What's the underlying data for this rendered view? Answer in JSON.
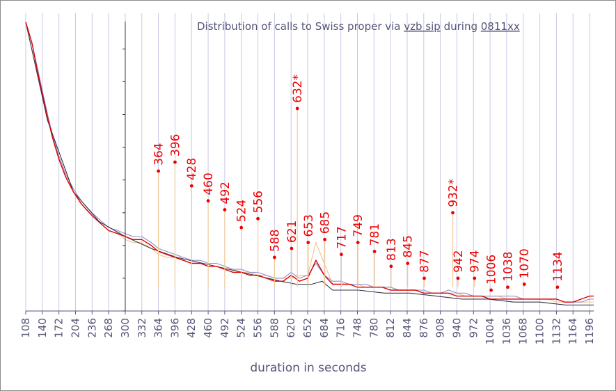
{
  "chart_data": {
    "type": "line",
    "title_parts": [
      "Distribution of calls to Swiss proper via ",
      "vzb sip",
      " during ",
      "0811xx"
    ],
    "xlabel": "duration in seconds",
    "ylabel": "",
    "xlim": [
      108,
      1204
    ],
    "ylim": [
      0,
      100
    ],
    "y_axis_crossing_x": 300,
    "grid": {
      "vertical": true,
      "horizontal": false
    },
    "x_tick_labels": [
      "108",
      "140",
      "172",
      "204",
      "236",
      "268",
      "300",
      "332",
      "364",
      "396",
      "428",
      "460",
      "492",
      "524",
      "556",
      "588",
      "620",
      "652",
      "684",
      "716",
      "748",
      "780",
      "812",
      "844",
      "876",
      "908",
      "940",
      "972",
      "1004",
      "1036",
      "1068",
      "1100",
      "1132",
      "1164",
      "1196"
    ],
    "colors": {
      "raw": "#f5c896",
      "smoothed": "#dd0000",
      "average": "#9090cc",
      "baseline": "#333344",
      "peak_label": "#ee0000",
      "grid": "#c8c8e8",
      "axis": "#555577"
    },
    "series": [
      {
        "role": "raw",
        "x": [
          108,
          120,
          130,
          140,
          150,
          160,
          172,
          185,
          200,
          215,
          236,
          255,
          268,
          285,
          300,
          315,
          332,
          350,
          364,
          380,
          396,
          412,
          428,
          445,
          460,
          476,
          492,
          508,
          524,
          540,
          556,
          572,
          588,
          605,
          620,
          636,
          652,
          668,
          684,
          700,
          716,
          732,
          748,
          764,
          780,
          796,
          812,
          828,
          844,
          860,
          876,
          892,
          908,
          924,
          940,
          956,
          972,
          988,
          1004,
          1020,
          1036,
          1052,
          1068,
          1084,
          1100,
          1116,
          1132,
          1148,
          1164,
          1180,
          1196,
          1204
        ],
        "y": [
          97,
          90,
          82,
          74,
          66,
          59,
          52,
          46,
          40,
          36,
          32,
          29,
          27,
          26,
          24,
          23,
          23,
          21,
          19,
          18,
          18,
          17,
          16,
          16,
          15,
          15,
          14,
          14,
          13,
          13,
          12,
          12,
          11,
          11,
          11,
          12,
          12,
          23,
          16,
          9,
          9,
          9,
          9,
          8,
          8,
          8,
          8,
          7,
          7,
          7,
          6,
          6,
          6,
          6,
          6,
          5,
          5,
          5,
          5,
          5,
          4,
          4,
          4,
          4,
          4,
          4,
          3,
          3,
          3,
          3,
          3,
          3
        ]
      },
      {
        "role": "smoothed",
        "x": [
          108,
          120,
          130,
          140,
          150,
          160,
          172,
          185,
          200,
          215,
          236,
          255,
          268,
          285,
          300,
          315,
          332,
          350,
          364,
          380,
          396,
          412,
          428,
          445,
          460,
          476,
          492,
          508,
          524,
          540,
          556,
          572,
          588,
          605,
          620,
          636,
          652,
          668,
          684,
          700,
          716,
          732,
          748,
          764,
          780,
          796,
          812,
          828,
          844,
          860,
          876,
          892,
          908,
          924,
          940,
          956,
          972,
          988,
          1004,
          1020,
          1036,
          1052,
          1068,
          1084,
          1100,
          1116,
          1132,
          1148,
          1164,
          1180,
          1196,
          1204
        ],
        "y": [
          97,
          90,
          81,
          73,
          65,
          58,
          51,
          45,
          40,
          36,
          32,
          29,
          27,
          26,
          25,
          24,
          24,
          22,
          20,
          19,
          18,
          17,
          16,
          16,
          15,
          15,
          14,
          13,
          13,
          12,
          12,
          11,
          10,
          10,
          12,
          10,
          11,
          17,
          12,
          9,
          9,
          9,
          8,
          8,
          8,
          8,
          7,
          7,
          7,
          7,
          6,
          6,
          6,
          6,
          5,
          5,
          5,
          5,
          4,
          4,
          4,
          4,
          4,
          4,
          4,
          4,
          4,
          3,
          3,
          4,
          5,
          5
        ]
      },
      {
        "role": "average",
        "x": [
          108,
          120,
          130,
          140,
          150,
          160,
          172,
          185,
          200,
          215,
          236,
          255,
          268,
          285,
          300,
          315,
          332,
          350,
          364,
          380,
          396,
          412,
          428,
          445,
          460,
          476,
          492,
          508,
          524,
          540,
          556,
          572,
          588,
          605,
          620,
          636,
          652,
          668,
          684,
          700,
          716,
          732,
          748,
          764,
          780,
          796,
          812,
          828,
          844,
          860,
          876,
          892,
          908,
          924,
          940,
          956,
          972,
          988,
          1004,
          1020,
          1036,
          1052,
          1068,
          1084,
          1100,
          1116,
          1132,
          1148,
          1164,
          1180,
          1196,
          1204
        ],
        "y": [
          97,
          90,
          82,
          74,
          66,
          59,
          52,
          46,
          41,
          37,
          33,
          30,
          28,
          27,
          26,
          25,
          25,
          23,
          21,
          20,
          19,
          18,
          17,
          17,
          16,
          16,
          15,
          14,
          14,
          13,
          13,
          12,
          11,
          11,
          13,
          11,
          12,
          16,
          12,
          10,
          10,
          9,
          9,
          9,
          8,
          8,
          8,
          7,
          7,
          7,
          7,
          6,
          6,
          7,
          6,
          6,
          5,
          5,
          5,
          5,
          5,
          5,
          4,
          4,
          4,
          4,
          4,
          3,
          3,
          3,
          4,
          4
        ]
      },
      {
        "role": "baseline",
        "x": [
          108,
          150,
          200,
          250,
          300,
          350,
          400,
          450,
          500,
          550,
          600,
          630,
          660,
          680,
          700,
          750,
          800,
          850,
          900,
          950,
          1000,
          1050,
          1100,
          1150,
          1204
        ],
        "y": [
          97,
          64,
          40,
          30,
          25,
          21,
          18,
          16,
          14,
          12,
          10,
          9,
          9,
          10,
          7,
          7,
          6,
          6,
          5,
          4,
          4,
          3,
          3,
          2,
          2
        ]
      }
    ],
    "peak_labels": [
      {
        "label": "364",
        "x": 364,
        "y": 47
      },
      {
        "label": "396",
        "x": 396,
        "y": 50
      },
      {
        "label": "428",
        "x": 428,
        "y": 42
      },
      {
        "label": "460",
        "x": 460,
        "y": 37
      },
      {
        "label": "492",
        "x": 492,
        "y": 34
      },
      {
        "label": "524",
        "x": 524,
        "y": 28
      },
      {
        "label": "556",
        "x": 556,
        "y": 31
      },
      {
        "label": "588",
        "x": 588,
        "y": 18
      },
      {
        "label": "621",
        "x": 621,
        "y": 21
      },
      {
        "label": "632*",
        "x": 632,
        "y": 68
      },
      {
        "label": "653",
        "x": 653,
        "y": 23
      },
      {
        "label": "685",
        "x": 685,
        "y": 24
      },
      {
        "label": "717",
        "x": 717,
        "y": 19
      },
      {
        "label": "749",
        "x": 749,
        "y": 23
      },
      {
        "label": "781",
        "x": 781,
        "y": 20
      },
      {
        "label": "813",
        "x": 813,
        "y": 15
      },
      {
        "label": "845",
        "x": 845,
        "y": 16
      },
      {
        "label": "877",
        "x": 877,
        "y": 11
      },
      {
        "label": "932*",
        "x": 932,
        "y": 33
      },
      {
        "label": "942",
        "x": 942,
        "y": 11
      },
      {
        "label": "974",
        "x": 974,
        "y": 11
      },
      {
        "label": "1006",
        "x": 1006,
        "y": 7
      },
      {
        "label": "1038",
        "x": 1038,
        "y": 8
      },
      {
        "label": "1070",
        "x": 1070,
        "y": 9
      },
      {
        "label": "1134",
        "x": 1134,
        "y": 8
      }
    ]
  }
}
